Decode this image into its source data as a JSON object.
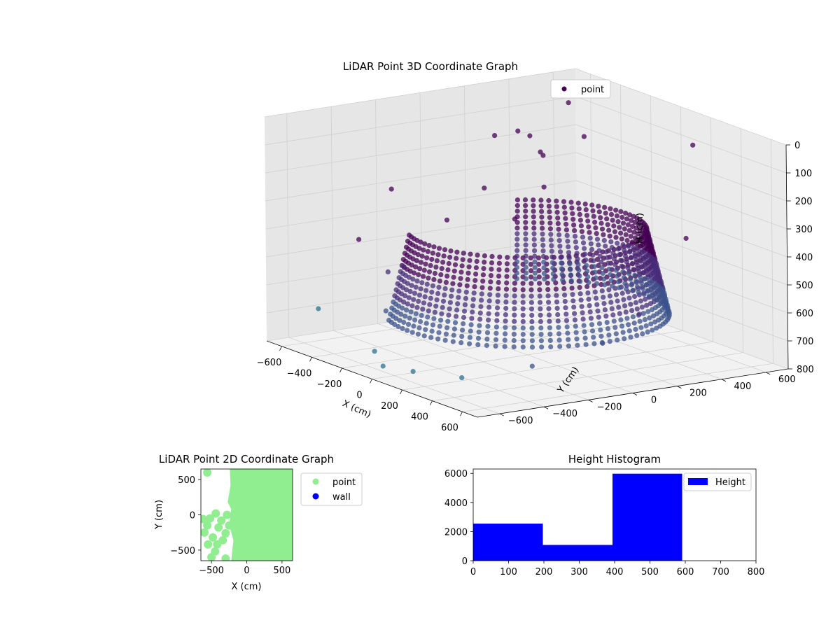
{
  "chart_data": [
    {
      "type": "scatter",
      "projection": "3d",
      "title": "LiDAR Point 3D Coordinate Graph",
      "xlabel": "X (cm)",
      "ylabel": "Y (cm)",
      "zlabel": "H (cm)",
      "xlim": [
        -700,
        700
      ],
      "ylim": [
        -700,
        700
      ],
      "zlim": [
        800,
        0
      ],
      "xticks": [
        -600,
        -400,
        -200,
        0,
        200,
        400,
        600
      ],
      "yticks": [
        -600,
        -400,
        -200,
        0,
        200,
        400,
        600
      ],
      "zticks": [
        0,
        100,
        200,
        300,
        400,
        500,
        600,
        700,
        800
      ],
      "z_axis_inverted": true,
      "grid": true,
      "legend": {
        "position": "top-right",
        "entries": [
          "point"
        ]
      },
      "colormap": "viridis (colored by height)",
      "series": [
        {
          "name": "point",
          "color": "#440154",
          "structure": "dense curved wall of points around the sensor, heights roughly 350 to 650 cm, plus scattered outliers",
          "wall_arc": {
            "radius": 450,
            "angle_start_deg": -110,
            "angle_end_deg": 150,
            "z_top": 350,
            "z_bottom": 650
          },
          "sample_points": [
            [
              -650,
              300,
              180
            ],
            [
              -600,
              -200,
              300
            ],
            [
              -550,
              450,
              250
            ],
            [
              -500,
              150,
              320
            ],
            [
              -450,
              -450,
              420
            ],
            [
              -420,
              350,
              200
            ],
            [
              -380,
              -100,
              380
            ],
            [
              -350,
              500,
              150
            ],
            [
              -300,
              -350,
              500
            ],
            [
              -250,
              250,
              280
            ],
            [
              -200,
              -500,
              620
            ],
            [
              -150,
              50,
              350
            ],
            [
              -650,
              -500,
              700
            ],
            [
              -600,
              600,
              90
            ],
            [
              -480,
              -300,
              560
            ],
            [
              300,
              550,
              60
            ],
            [
              620,
              300,
              300
            ],
            [
              600,
              100,
              550
            ],
            [
              550,
              -350,
              690
            ],
            [
              450,
              -600,
              720
            ],
            [
              200,
              -650,
              740
            ],
            [
              0,
              -650,
              760
            ],
            [
              -100,
              -620,
              730
            ],
            [
              650,
              -100,
              620
            ],
            [
              -50,
              0,
              10
            ],
            [
              0,
              20,
              20
            ]
          ]
        }
      ]
    },
    {
      "type": "scatter",
      "title": "LiDAR Point 2D Coordinate Graph",
      "xlabel": "X (cm)",
      "ylabel": "Y (cm)",
      "xlim": [
        -650,
        650
      ],
      "ylim": [
        -650,
        650
      ],
      "xticks": [
        -500,
        0,
        500
      ],
      "yticks": [
        -500,
        0,
        500
      ],
      "legend": {
        "position": "outside-right",
        "entries": [
          "point",
          "wall"
        ]
      },
      "series": [
        {
          "name": "point",
          "color": "#90ee90",
          "region": "dense cloud filling x from about -250 to 650, with a sparse lobe to about -650 near y from -650 to 100",
          "points": [
            [
              -600,
              -250
            ],
            [
              -560,
              -150
            ],
            [
              -520,
              -50
            ],
            [
              -480,
              -320
            ],
            [
              -450,
              -520
            ],
            [
              -420,
              -420
            ],
            [
              -400,
              -180
            ],
            [
              -360,
              -80
            ],
            [
              -340,
              -360
            ],
            [
              -300,
              -620
            ],
            [
              -300,
              -260
            ],
            [
              -280,
              0
            ],
            [
              -250,
              -150
            ],
            [
              -550,
              -420
            ],
            [
              -500,
              -600
            ],
            [
              -560,
              600
            ],
            [
              -620,
              -60
            ],
            [
              -440,
              20
            ]
          ],
          "dense_polygon": [
            [
              -240,
              650
            ],
            [
              650,
              650
            ],
            [
              650,
              -650
            ],
            [
              -220,
              -650
            ],
            [
              -190,
              -360
            ],
            [
              -250,
              -140
            ],
            [
              -220,
              80
            ],
            [
              -270,
              180
            ],
            [
              -230,
              420
            ]
          ]
        },
        {
          "name": "wall",
          "color": "#0000ff",
          "points": []
        }
      ]
    },
    {
      "type": "bar",
      "subtype": "histogram",
      "title": "Height Histogram",
      "xlabel": "",
      "ylabel": "",
      "xlim": [
        0,
        800
      ],
      "ylim": [
        0,
        6300
      ],
      "xticks": [
        0,
        100,
        200,
        300,
        400,
        500,
        600,
        700,
        800
      ],
      "yticks": [
        0,
        2000,
        4000,
        6000
      ],
      "legend": {
        "position": "top-right",
        "entries": [
          "Height"
        ]
      },
      "series": [
        {
          "name": "Height",
          "color": "#0000ff",
          "bins": [
            {
              "start": 0,
              "end": 197,
              "count": 2550
            },
            {
              "start": 197,
              "end": 394,
              "count": 1080
            },
            {
              "start": 394,
              "end": 591,
              "count": 5980
            }
          ]
        }
      ]
    }
  ]
}
